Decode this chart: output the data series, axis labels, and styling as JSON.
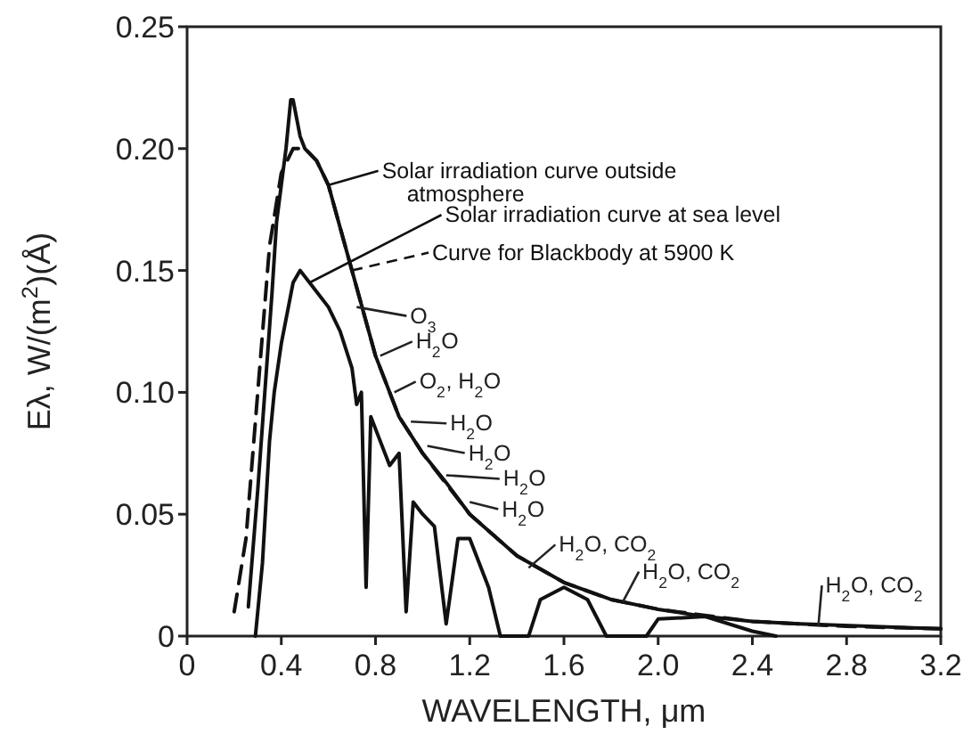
{
  "chart_data": {
    "type": "line",
    "xlabel": "WAVELENGTH, μm",
    "ylabel": "Eλ, W/(m$^{2}$)(Å)",
    "xlim": [
      0,
      3.2
    ],
    "ylim": [
      0,
      0.25
    ],
    "xticks": [
      0,
      0.4,
      0.8,
      1.2,
      1.6,
      {
        "value": 2,
        "label": "2.0"
      },
      2.4,
      2.8,
      3.2
    ],
    "yticks": [
      0,
      0.05,
      {
        "value": 0.1,
        "label": "0.10"
      },
      0.15,
      {
        "value": 0.2,
        "label": "0.20"
      },
      0.25
    ],
    "grid": false,
    "legend": "top right",
    "tick_labels": "xy",
    "series": [
      {
        "name": "Solar irradiation curve outside atmosphere",
        "color": "#111111",
        "line_style": "solid",
        "x": [
          0.26,
          0.3,
          0.33,
          0.36,
          0.38,
          0.4,
          0.42,
          0.44,
          0.45,
          0.46,
          0.48,
          0.5,
          0.55,
          0.6,
          0.7,
          0.8,
          0.9,
          1.0,
          1.1,
          1.2,
          1.4,
          1.6,
          1.8,
          2.0,
          2.2,
          2.4,
          2.6,
          3.2
        ],
        "values": [
          0.012,
          0.06,
          0.1,
          0.14,
          0.17,
          0.185,
          0.2,
          0.22,
          0.22,
          0.215,
          0.205,
          0.2,
          0.195,
          0.185,
          0.15,
          0.115,
          0.09,
          0.075,
          0.063,
          0.05,
          0.033,
          0.022,
          0.015,
          0.011,
          0.008,
          0.006,
          0.005,
          0.003
        ]
      },
      {
        "name": "Solar irradiation curve at sea level",
        "color": "#111111",
        "line_style": "solid",
        "x": [
          0.29,
          0.32,
          0.35,
          0.37,
          0.4,
          0.45,
          0.48,
          0.52,
          0.6,
          0.65,
          0.7,
          0.72,
          0.74,
          0.76,
          0.78,
          0.82,
          0.86,
          0.9,
          0.93,
          0.96,
          1.0,
          1.05,
          1.1,
          1.15,
          1.2,
          1.28,
          1.33,
          1.45,
          1.5,
          1.6,
          1.7,
          1.78,
          1.95,
          2.0,
          2.2,
          2.4,
          2.5
        ],
        "values": [
          0,
          0.03,
          0.08,
          0.1,
          0.12,
          0.145,
          0.15,
          0.145,
          0.135,
          0.125,
          0.11,
          0.095,
          0.1,
          0.02,
          0.09,
          0.08,
          0.07,
          0.075,
          0.01,
          0.055,
          0.05,
          0.045,
          0.005,
          0.04,
          0.04,
          0.02,
          0,
          0,
          0.015,
          0.02,
          0.015,
          0,
          0,
          0.007,
          0.008,
          0.002,
          0
        ]
      },
      {
        "name": "Curve for Blackbody at 5900 K",
        "color": "#111111",
        "line_style": "dashed",
        "x": [
          0.2,
          0.25,
          0.3,
          0.35,
          0.4,
          0.45,
          0.5,
          0.55,
          0.6,
          0.7,
          0.8,
          0.9,
          1.0,
          1.2,
          1.4,
          1.6,
          1.8,
          2.0,
          2.4,
          2.8,
          3.2
        ],
        "values": [
          0.01,
          0.04,
          0.1,
          0.16,
          0.19,
          0.2,
          0.2,
          0.195,
          0.185,
          0.15,
          0.115,
          0.09,
          0.075,
          0.05,
          0.033,
          0.022,
          0.015,
          0.011,
          0.006,
          0.004,
          0.003
        ]
      }
    ],
    "annotations": [
      {
        "text": "O$_{3}$",
        "x": 0.72,
        "y": 0.135
      },
      {
        "text": "H$_{2}$O",
        "x": 0.82,
        "y": 0.115
      },
      {
        "text": "O$_{2}$, H$_{2}$O",
        "x": 0.88,
        "y": 0.1
      },
      {
        "text": "H$_{2}$O",
        "x": 0.95,
        "y": 0.088
      },
      {
        "text": "H$_{2}$O",
        "x": 1.02,
        "y": 0.078
      },
      {
        "text": "H$_{2}$O",
        "x": 1.1,
        "y": 0.066
      },
      {
        "text": "H$_{2}$O",
        "x": 1.2,
        "y": 0.055
      },
      {
        "text": "H$_{2}$O, CO$_{2}$",
        "x": 1.45,
        "y": 0.028
      },
      {
        "text": "H$_{2}$O, CO$_{2}$",
        "x": 1.85,
        "y": 0.014
      },
      {
        "text": "H$_{2}$O, CO$_{2}$",
        "x": 2.68,
        "y": 0.004
      }
    ]
  }
}
